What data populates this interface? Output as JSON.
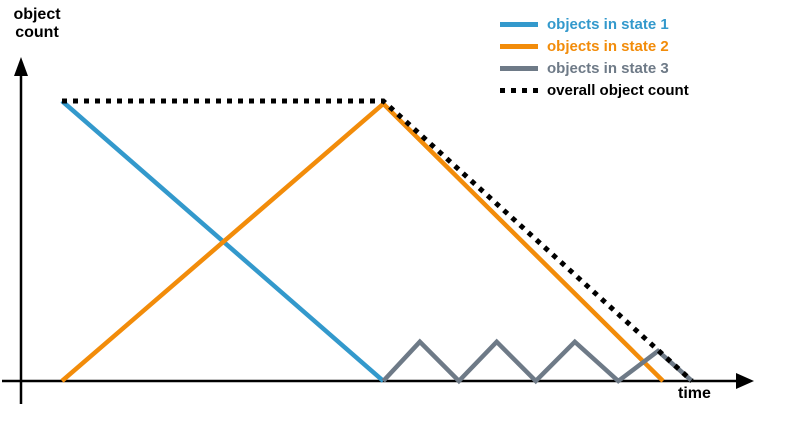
{
  "chart_data": {
    "type": "line",
    "title": "",
    "xlabel": "time",
    "ylabel": "object count",
    "xlim": [
      0,
      108
    ],
    "ylim": [
      0,
      100
    ],
    "grid": false,
    "axis_ticks": "none (schematic sketch, unlabeled axes with arrowheads)",
    "legend_position": "top-right",
    "axis_color": "#000000",
    "series": [
      {
        "name": "objects in state 1",
        "color": "#3399CC",
        "style": "solid",
        "points": [
          [
            0,
            100
          ],
          [
            51,
            0
          ]
        ]
      },
      {
        "name": "objects in state 2",
        "color": "#F28C0A",
        "style": "solid",
        "points": [
          [
            0,
            0
          ],
          [
            51,
            99
          ],
          [
            95.4,
            0
          ]
        ]
      },
      {
        "name": "objects in state 3",
        "color": "#6E7A87",
        "style": "solid",
        "points": [
          [
            51,
            0
          ],
          [
            56.8,
            14
          ],
          [
            63,
            0
          ],
          [
            69,
            14
          ],
          [
            75.2,
            0
          ],
          [
            81.4,
            14
          ],
          [
            88.3,
            0
          ],
          [
            94.6,
            10.7
          ],
          [
            100,
            0
          ]
        ]
      },
      {
        "name": "overall object count",
        "color": "#000000",
        "style": "dotted",
        "points": [
          [
            0,
            100
          ],
          [
            51,
            100
          ],
          [
            100,
            0
          ]
        ]
      }
    ]
  }
}
